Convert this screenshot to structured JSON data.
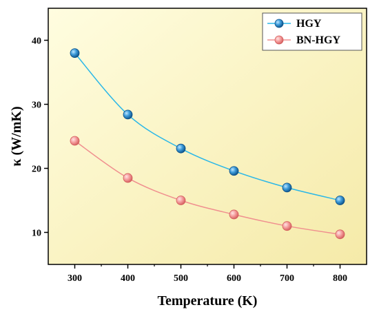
{
  "chart_data": {
    "type": "line",
    "x": [
      300,
      400,
      500,
      600,
      700,
      800
    ],
    "series": [
      {
        "name": "HGY",
        "values": [
          38.0,
          28.4,
          23.1,
          19.6,
          17.0,
          15.0
        ],
        "color": "#1e8fd0",
        "line_color": "#29b7e8"
      },
      {
        "name": "BN-HGY",
        "values": [
          24.3,
          18.5,
          15.0,
          12.8,
          11.0,
          9.7
        ],
        "color": "#f07f7f",
        "line_color": "#f08f8f"
      }
    ],
    "xlabel": "Temperature (K)",
    "ylabel": "κ (W/mK)",
    "xlim": [
      250,
      850
    ],
    "ylim": [
      5,
      45
    ],
    "xticks": [
      300,
      400,
      500,
      600,
      700,
      800
    ],
    "yticks": [
      10,
      20,
      30,
      40
    ],
    "grid": false,
    "legend_position": "top-right",
    "background_gradient": [
      "#fffde0",
      "#f5eaa8"
    ]
  }
}
